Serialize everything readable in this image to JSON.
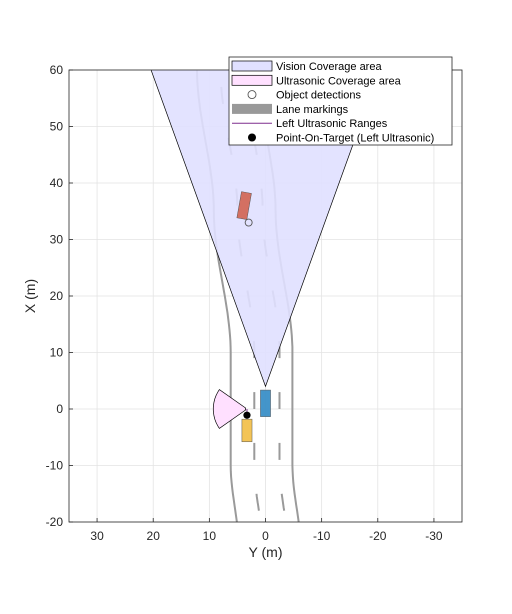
{
  "chart_data": {
    "type": "scatter",
    "xlabel": "Y (m)",
    "ylabel": "X (m)",
    "xlim": [
      35,
      -35
    ],
    "ylim": [
      -20,
      60
    ],
    "x_ticks": [
      30,
      20,
      10,
      0,
      -10,
      -20,
      -30
    ],
    "y_ticks": [
      -20,
      -10,
      0,
      10,
      20,
      30,
      40,
      50,
      60
    ],
    "grid": true,
    "legend_position": "top-right",
    "legend": [
      {
        "label": "Vision Coverage area",
        "symbol": "patch",
        "color": "#e0e0ff"
      },
      {
        "label": "Ultrasonic Coverage area",
        "symbol": "patch",
        "color": "#ffe0ff"
      },
      {
        "label": "Object detections",
        "symbol": "open-circle",
        "color": "#555555"
      },
      {
        "label": "Lane markings",
        "symbol": "gray-bar",
        "color": "#999999"
      },
      {
        "label": "Left Ultrasonic Ranges",
        "symbol": "line",
        "color": "#7e2f8e"
      },
      {
        "label": "Point-On-Target (Left Ultrasonic)",
        "symbol": "filled-circle",
        "color": "#000000"
      }
    ],
    "vision_coverage": {
      "origin": [
        0,
        4
      ],
      "range": 150,
      "half_angle_deg": 20
    },
    "ultrasonic_coverage": {
      "origin": [
        3.3,
        0
      ],
      "min_range": 0.3,
      "max_range": 6,
      "center_deg": 90,
      "half_angle_deg": 35
    },
    "ultrasonic_range_line": {
      "from": [
        3.3,
        0
      ],
      "to": [
        3.3,
        -1.1
      ]
    },
    "object_detections": [
      {
        "x": 3.0,
        "y": 33.0
      }
    ],
    "point_on_target": [
      {
        "x": 3.3,
        "y": -1.1
      }
    ],
    "ego_vehicle": {
      "center": [
        0,
        1
      ],
      "length": 4.7,
      "width": 1.8,
      "color": "#3a8fc7"
    },
    "target_vehicles": [
      {
        "center": [
          3.8,
          36.0
        ],
        "length": 4.7,
        "width": 1.8,
        "heading_deg": 10,
        "color": "#d2695a"
      },
      {
        "center": [
          3.3,
          -3.8
        ],
        "length": 4.0,
        "width": 1.8,
        "heading_deg": 0,
        "color": "#f2c14e"
      }
    ],
    "road_center_offset_control": [
      [
        -25,
        -1.5
      ],
      [
        -10,
        0
      ],
      [
        10,
        0
      ],
      [
        35,
        3
      ],
      [
        60,
        6
      ]
    ],
    "road_edges_offset": [
      6.2,
      -4.8
    ],
    "lane_dash_offsets": [
      2.0,
      -2.5
    ]
  }
}
